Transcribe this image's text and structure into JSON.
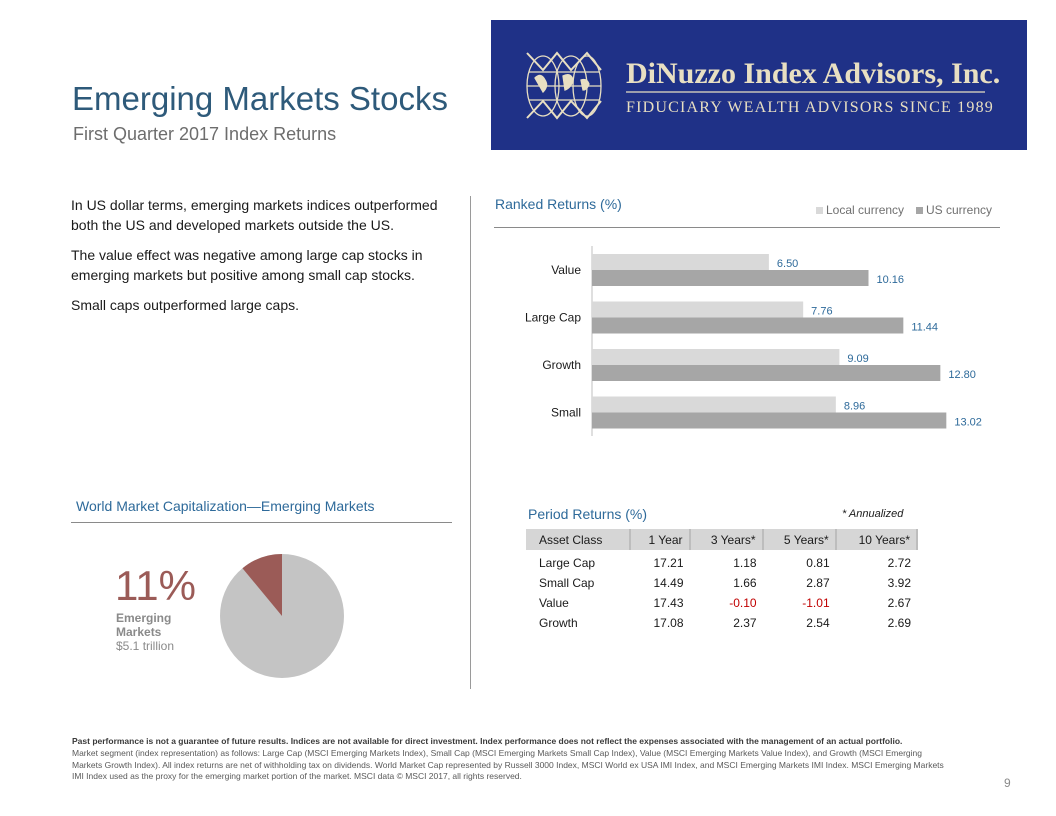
{
  "header": {
    "title": "Emerging Markets Stocks",
    "subtitle": "First Quarter 2017 Index Returns"
  },
  "logo": {
    "name": "DiNuzzo Index Advisors, Inc.",
    "tagline": "FIDUCIARY WEALTH ADVISORS SINCE 1989",
    "bg_color": "#1f3187",
    "text_color": "#e8dfc2"
  },
  "intro": {
    "p1": "In US dollar terms, emerging markets indices outperformed both the US and developed markets outside the US.",
    "p2": "The value effect was negative among large cap stocks in emerging markets but positive among small cap stocks.",
    "p3": "Small caps outperformed large caps."
  },
  "ranked": {
    "title": "Ranked Returns (%)"
  },
  "chart_data": {
    "type": "bar",
    "orientation": "horizontal",
    "title": "Ranked Returns (%)",
    "categories": [
      "Value",
      "Large Cap",
      "Growth",
      "Small"
    ],
    "series": [
      {
        "name": "Local currency",
        "values": [
          6.5,
          7.76,
          9.09,
          8.96
        ],
        "color": "#d9d9d9"
      },
      {
        "name": "US currency",
        "values": [
          10.16,
          11.44,
          12.8,
          13.02
        ],
        "color": "#a6a6a6"
      }
    ],
    "value_labels": {
      "local": [
        "6.50",
        "7.76",
        "9.09",
        "8.96"
      ],
      "us": [
        "10.16",
        "11.44",
        "12.80",
        "13.02"
      ]
    },
    "xlim": [
      0,
      14
    ],
    "legend_position": "top-right",
    "label_color": "#2e6a9a"
  },
  "world_market": {
    "title": "World Market Capitalization—Emerging Markets",
    "percent_label": "11%",
    "percent": 11,
    "segment_label": "Emerging Markets",
    "value": "$5.1 trillion",
    "slice_color": "#9b5b57",
    "rest_color": "#c4c4c4"
  },
  "period_returns": {
    "title": "Period Returns (%)",
    "note": "* Annualized",
    "columns": [
      "Asset Class",
      "1 Year",
      "3 Years*",
      "5 Years*",
      "10 Years*"
    ],
    "rows": [
      [
        "Large Cap",
        "17.21",
        "1.18",
        "0.81",
        "2.72"
      ],
      [
        "Small Cap",
        "14.49",
        "1.66",
        "2.87",
        "3.92"
      ],
      [
        "Value",
        "17.43",
        "-0.10",
        "-1.01",
        "2.67"
      ],
      [
        "Growth",
        "17.08",
        "2.37",
        "2.54",
        "2.69"
      ]
    ]
  },
  "footer": {
    "disclaimer_bold": "Past performance is not a guarantee of future results. Indices are not available for direct investment. Index performance does not reflect the expenses associated with the management of an actual portfolio.",
    "disclaimer": "Market segment (index representation) as follows: Large Cap (MSCI Emerging Markets Index), Small Cap (MSCI Emerging Markets Small Cap Index), Value (MSCI Emerging Markets Value Index), and Growth (MSCI Emerging Markets Growth Index). All index returns are net of withholding tax on dividends. World Market Cap represented by Russell 3000 Index, MSCI World ex USA IMI Index, and MSCI Emerging Markets IMI Index. MSCI Emerging Markets IMI Index used as the proxy for the emerging market portion of the market. MSCI data © MSCI 2017, all rights reserved.",
    "page_number": "9"
  }
}
